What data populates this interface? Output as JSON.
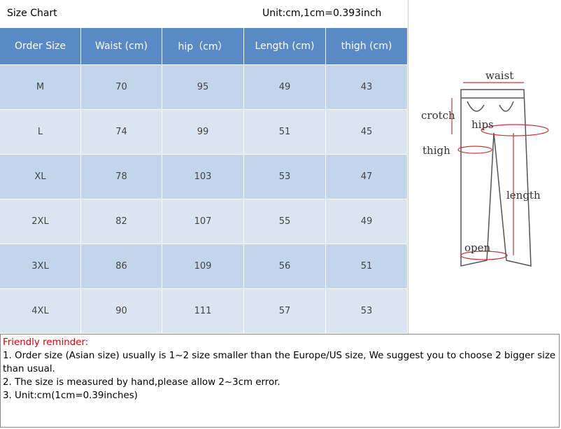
{
  "header": {
    "title": "Size Chart",
    "unit": "Unit:cm,1cm=0.393inch"
  },
  "table": {
    "columns": [
      "Order Size",
      "Waist (cm)",
      "hip（cm）",
      "Length (cm)",
      "thigh (cm)"
    ],
    "rows": [
      [
        "M",
        70,
        95,
        49,
        43
      ],
      [
        "L",
        74,
        99,
        51,
        45
      ],
      [
        "XL",
        78,
        103,
        53,
        47
      ],
      [
        "2XL",
        82,
        107,
        55,
        49
      ],
      [
        "3XL",
        86,
        109,
        56,
        51
      ],
      [
        "4XL",
        90,
        111,
        57,
        53
      ]
    ]
  },
  "diagram": {
    "labels": {
      "waist": "waist",
      "crotch": "crotch",
      "hips": "hips",
      "thigh": "thigh",
      "length": "length",
      "open": "open"
    }
  },
  "notes": {
    "heading": "Friendly reminder:",
    "items": [
      "1. Order size (Asian size) usually is 1~2 size smaller than the Europe/US size, We suggest you to choose 2 bigger size than usual.",
      "2. The size is measured by hand,please allow 2~3cm error.",
      "3. Unit:cm(1cm=0.39inches)"
    ]
  }
}
